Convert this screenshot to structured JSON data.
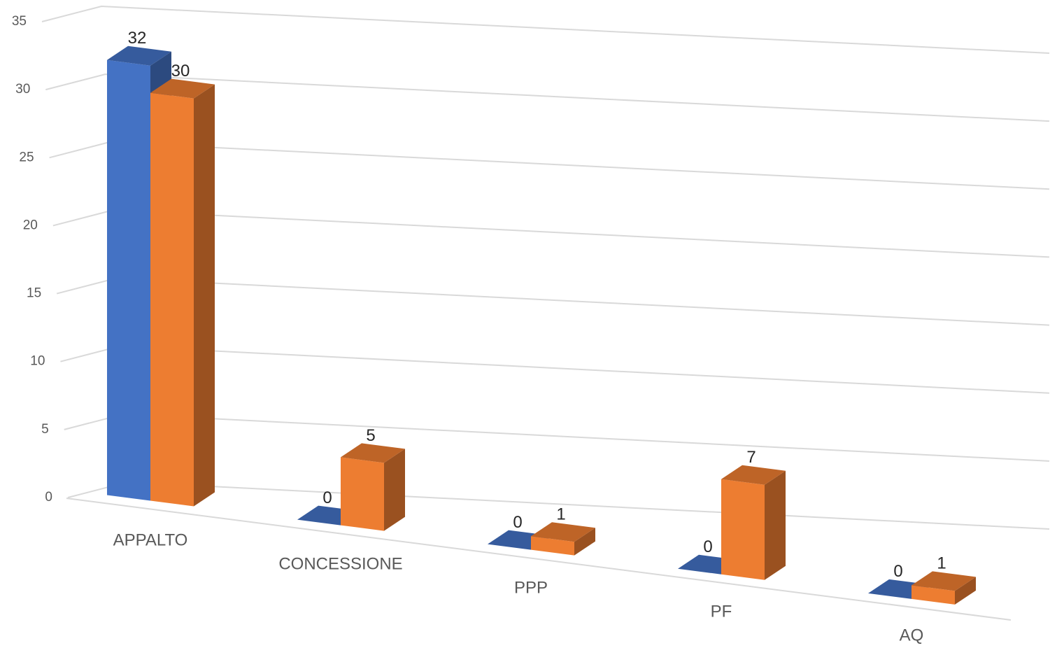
{
  "chart_data": {
    "type": "bar3d",
    "categories": [
      "APPALTO",
      "CONCESSIONE",
      "PPP",
      "PF",
      "AQ"
    ],
    "series": [
      {
        "color": "#4472c4",
        "values": [
          32,
          0,
          0,
          0,
          0
        ]
      },
      {
        "color": "#ed7d31",
        "values": [
          30,
          5,
          1,
          7,
          1
        ]
      }
    ],
    "ylim": [
      0,
      35
    ],
    "yticks": [
      0,
      5,
      10,
      15,
      20,
      25,
      30,
      35
    ],
    "grid": true,
    "data_labels": true
  }
}
